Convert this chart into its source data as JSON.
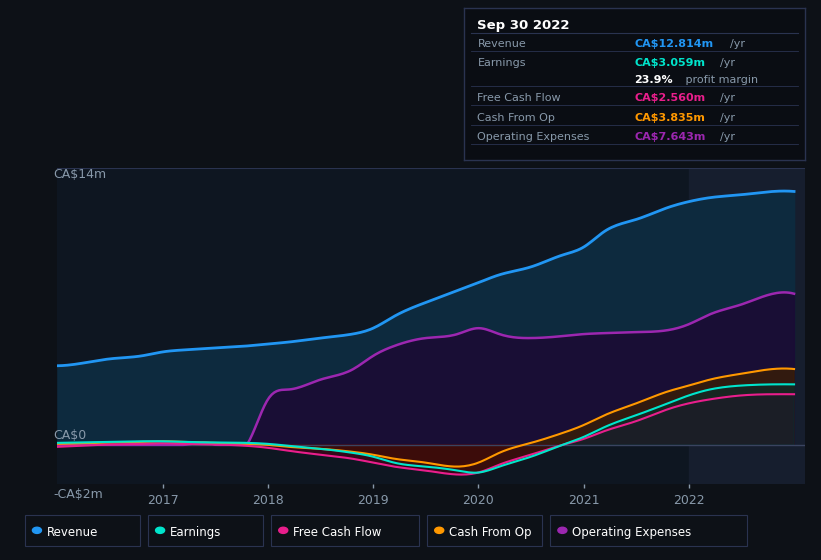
{
  "bg_color": "#0d1117",
  "plot_bg_color": "#0e1621",
  "ylabel_top": "CA$14m",
  "ylabel_zero": "CA$0",
  "ylabel_neg": "-CA$2m",
  "ylim": [
    -2.0,
    14.0
  ],
  "xlim_start": 2016.0,
  "xlim_end": 2023.1,
  "xticks": [
    2017,
    2018,
    2019,
    2020,
    2021,
    2022
  ],
  "legend_items": [
    {
      "label": "Revenue",
      "color": "#2196f3"
    },
    {
      "label": "Earnings",
      "color": "#00e5cc"
    },
    {
      "label": "Free Cash Flow",
      "color": "#e91e8c"
    },
    {
      "label": "Cash From Op",
      "color": "#ff9800"
    },
    {
      "label": "Operating Expenses",
      "color": "#9c27b0"
    }
  ],
  "title_box": {
    "date": "Sep 30 2022",
    "revenue_label": "Revenue",
    "revenue_value": "CA$12.814m",
    "revenue_unit": "/yr",
    "revenue_color": "#2196f3",
    "earnings_label": "Earnings",
    "earnings_value": "CA$3.059m",
    "earnings_unit": "/yr",
    "earnings_color": "#00e5cc",
    "margin_value": "23.9%",
    "margin_text": " profit margin",
    "fcf_label": "Free Cash Flow",
    "fcf_value": "CA$2.560m",
    "fcf_unit": "/yr",
    "fcf_color": "#e91e8c",
    "cashop_label": "Cash From Op",
    "cashop_value": "CA$3.835m",
    "cashop_unit": "/yr",
    "cashop_color": "#ff9800",
    "opex_label": "Operating Expenses",
    "opex_value": "CA$7.643m",
    "opex_unit": "/yr",
    "opex_color": "#9c27b0"
  },
  "series": {
    "x": [
      2016.0,
      2016.2,
      2016.5,
      2016.8,
      2017.0,
      2017.2,
      2017.5,
      2017.8,
      2018.0,
      2018.2,
      2018.5,
      2018.8,
      2019.0,
      2019.2,
      2019.5,
      2019.8,
      2020.0,
      2020.2,
      2020.5,
      2020.8,
      2021.0,
      2021.2,
      2021.5,
      2021.8,
      2022.0,
      2022.2,
      2022.5,
      2022.8,
      2023.0
    ],
    "revenue": [
      4.0,
      4.1,
      4.35,
      4.5,
      4.7,
      4.8,
      4.9,
      5.0,
      5.1,
      5.2,
      5.4,
      5.6,
      5.9,
      6.5,
      7.2,
      7.8,
      8.2,
      8.6,
      9.0,
      9.6,
      10.0,
      10.8,
      11.4,
      12.0,
      12.3,
      12.5,
      12.65,
      12.814,
      12.814
    ],
    "operating_expenses": [
      0.0,
      0.0,
      0.0,
      0.0,
      0.0,
      0.0,
      0.0,
      0.0,
      2.3,
      2.8,
      3.3,
      3.8,
      4.5,
      5.0,
      5.4,
      5.6,
      5.9,
      5.6,
      5.4,
      5.5,
      5.6,
      5.65,
      5.7,
      5.8,
      6.1,
      6.6,
      7.1,
      7.643,
      7.643
    ],
    "earnings": [
      0.1,
      0.12,
      0.15,
      0.18,
      0.18,
      0.15,
      0.12,
      0.1,
      0.05,
      -0.05,
      -0.2,
      -0.4,
      -0.6,
      -0.9,
      -1.1,
      -1.3,
      -1.4,
      -1.1,
      -0.6,
      0.0,
      0.4,
      0.9,
      1.5,
      2.1,
      2.5,
      2.8,
      3.0,
      3.059,
      3.059
    ],
    "free_cash_flow": [
      -0.1,
      -0.05,
      0.02,
      0.05,
      0.08,
      0.05,
      0.02,
      -0.05,
      -0.15,
      -0.3,
      -0.5,
      -0.7,
      -0.9,
      -1.1,
      -1.3,
      -1.5,
      -1.4,
      -1.0,
      -0.5,
      0.0,
      0.3,
      0.7,
      1.2,
      1.8,
      2.1,
      2.3,
      2.5,
      2.56,
      2.56
    ],
    "cash_from_op": [
      0.05,
      0.08,
      0.12,
      0.15,
      0.18,
      0.15,
      0.1,
      0.05,
      0.0,
      -0.1,
      -0.2,
      -0.35,
      -0.5,
      -0.7,
      -0.9,
      -1.1,
      -0.9,
      -0.4,
      0.1,
      0.6,
      1.0,
      1.5,
      2.1,
      2.7,
      3.0,
      3.3,
      3.6,
      3.835,
      3.835
    ]
  },
  "highlight_x_start": 2022.0,
  "highlight_x_end": 2023.1,
  "highlight_color": "#161e2e"
}
